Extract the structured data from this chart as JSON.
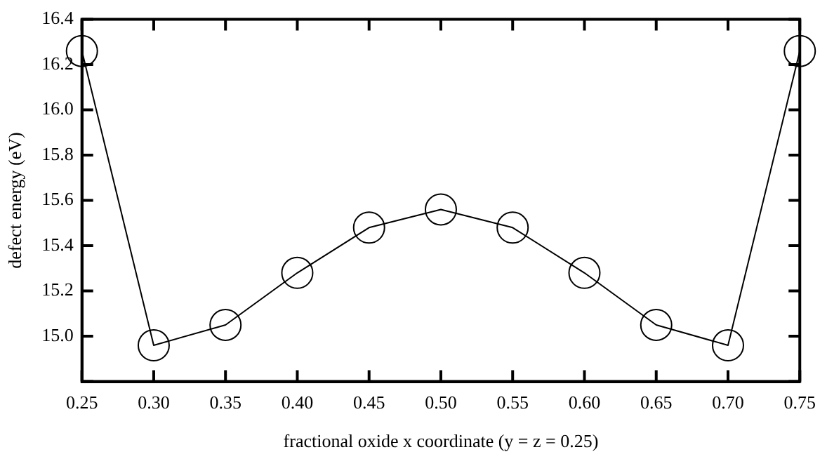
{
  "chart_data": {
    "type": "line",
    "xlabel": "fractional oxide x coordinate (y = z = 0.25)",
    "ylabel": "defect energy (eV)",
    "x": [
      0.25,
      0.3,
      0.35,
      0.4,
      0.45,
      0.5,
      0.55,
      0.6,
      0.65,
      0.7,
      0.75
    ],
    "series": [
      {
        "color": "#000000",
        "values": [
          16.26,
          14.96,
          15.05,
          15.28,
          15.48,
          15.56,
          15.48,
          15.28,
          15.05,
          14.96,
          16.26
        ]
      }
    ],
    "xlim": [
      0.25,
      0.75
    ],
    "xticks": [
      {
        "value": 0.25,
        "label": "0.25"
      },
      {
        "value": 0.3,
        "label": "0.30"
      },
      {
        "value": 0.35,
        "label": "0.35"
      },
      {
        "value": 0.4,
        "label": "0.40"
      },
      {
        "value": 0.45,
        "label": "0.45"
      },
      {
        "value": 0.5,
        "label": "0.50"
      },
      {
        "value": 0.55,
        "label": "0.55"
      },
      {
        "value": 0.6,
        "label": "0.60"
      },
      {
        "value": 0.65,
        "label": "0.65"
      },
      {
        "value": 0.7,
        "label": "0.70"
      },
      {
        "value": 0.75,
        "label": "0.75"
      }
    ],
    "ylim": [
      14.8,
      16.4
    ],
    "yticks": [
      {
        "value": 14.8,
        "label": null
      },
      {
        "value": 15.0,
        "label": "15.0"
      },
      {
        "value": 15.2,
        "label": "15.2"
      },
      {
        "value": 15.4,
        "label": "15.4"
      },
      {
        "value": 15.6,
        "label": "15.6"
      },
      {
        "value": 15.8,
        "label": "15.8"
      },
      {
        "value": 16.0,
        "label": "16.0"
      },
      {
        "value": 16.2,
        "label": "16.2"
      },
      {
        "value": 16.4,
        "label": "16.4"
      }
    ],
    "grid": false,
    "legend": false,
    "marker": "circle",
    "line_style": "solid"
  }
}
